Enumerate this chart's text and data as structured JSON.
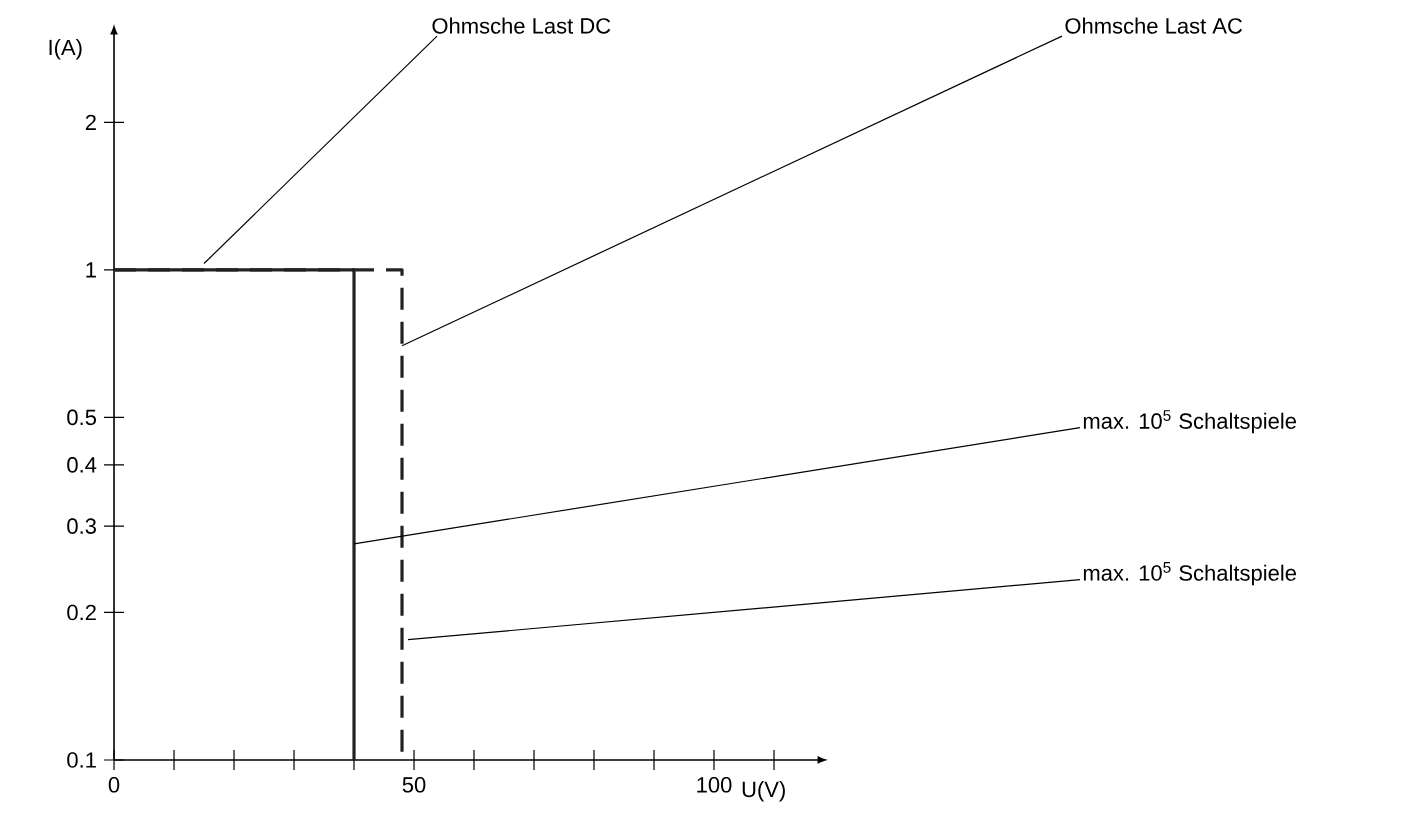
{
  "chart_data": {
    "type": "line",
    "xlabel": "U(V)",
    "ylabel": "I(A)",
    "log": "y",
    "xlim": [
      0,
      117
    ],
    "ylim": [
      0.1,
      3
    ],
    "xticks": [
      0,
      {
        "value": 10,
        "label": null
      },
      {
        "value": 20,
        "label": null
      },
      {
        "value": 30,
        "label": null
      },
      {
        "value": 40,
        "label": null
      },
      50,
      {
        "value": 60,
        "label": null
      },
      {
        "value": 70,
        "label": null
      },
      {
        "value": 80,
        "label": null
      },
      {
        "value": 90,
        "label": null
      },
      100,
      {
        "value": 110,
        "label": null
      }
    ],
    "yticks": [
      0.1,
      0.2,
      0.3,
      0.4,
      0.5,
      1,
      2
    ],
    "series": [
      {
        "color": "#222222",
        "line_style": "solid",
        "x": [
          0,
          40,
          40
        ],
        "values": [
          1,
          1,
          0.1
        ]
      },
      {
        "color": "#222222",
        "line_style": "dashed",
        "x": [
          0,
          48,
          48
        ],
        "values": [
          1,
          1,
          0.1
        ]
      }
    ],
    "annotations": [
      {
        "text": "Ohmsche Last DC",
        "x": 15,
        "y": 1.03
      },
      {
        "text": "Ohmsche Last AC",
        "x": 48,
        "y": 0.7
      },
      {
        "text": "max. 10$^{5}$ Schaltspiele",
        "x": 40,
        "y": 0.276
      },
      {
        "text": "max. 10$^{5}$ Schaltspiele",
        "x": 49,
        "y": 0.176
      }
    ]
  }
}
